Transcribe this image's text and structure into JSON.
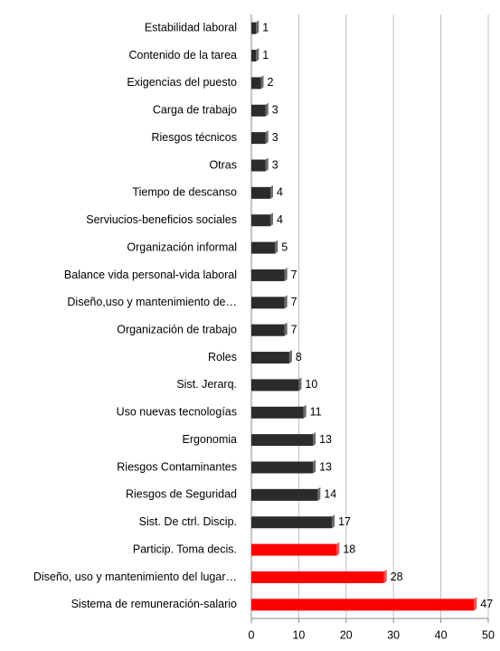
{
  "chart_data": {
    "type": "hbar",
    "categories": [
      "Estabilidad laboral",
      "Contenido de la tarea",
      "Exigencias del puesto",
      "Carga de trabajo",
      "Riesgos técnicos",
      "Otras",
      "Tiempo de descanso",
      "Serviucios-beneficios sociales",
      "Organización informal",
      "Balance vida personal-vida laboral",
      "Diseño,uso y mantenimiento de…",
      "Organización de trabajo",
      "Roles",
      "Sist. Jerarq.",
      "Uso nuevas tecnologías",
      "Ergonomia",
      "Riesgos Contaminantes",
      "Riesgos de Seguridad",
      "Sist. De ctrl. Discip.",
      "Particip. Toma decis.",
      "Diseño, uso y mantenimiento del lugar…",
      "Sistema de remuneración-salario"
    ],
    "values": [
      1,
      1,
      2,
      3,
      3,
      3,
      4,
      4,
      5,
      7,
      7,
      7,
      8,
      10,
      11,
      13,
      13,
      14,
      17,
      18,
      28,
      47
    ],
    "colors": [
      "#2b2b2b",
      "#2b2b2b",
      "#2b2b2b",
      "#2b2b2b",
      "#2b2b2b",
      "#2b2b2b",
      "#2b2b2b",
      "#2b2b2b",
      "#2b2b2b",
      "#2b2b2b",
      "#2b2b2b",
      "#2b2b2b",
      "#2b2b2b",
      "#2b2b2b",
      "#2b2b2b",
      "#2b2b2b",
      "#2b2b2b",
      "#2b2b2b",
      "#2b2b2b",
      "#ff0000",
      "#ff0000",
      "#ff0000"
    ],
    "xlim": [
      0,
      50
    ],
    "xticks": [
      0,
      10,
      20,
      30,
      40,
      50
    ],
    "grid": true
  }
}
